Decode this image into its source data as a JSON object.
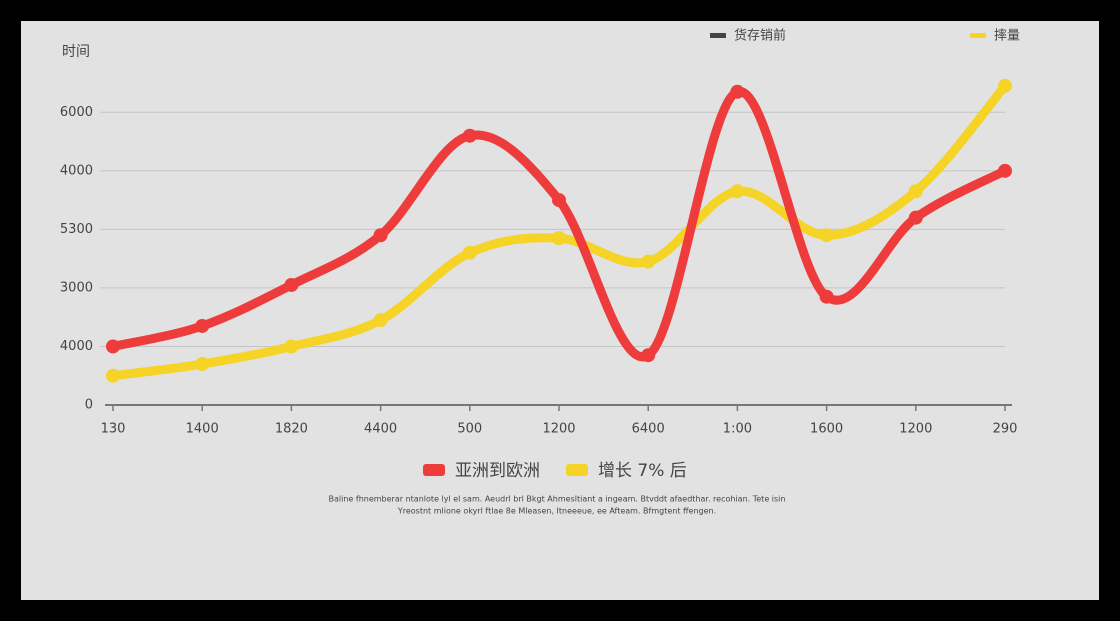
{
  "chart_data": {
    "type": "line",
    "y_axis_label": "时间",
    "top_legend": [
      {
        "name": "货存销前",
        "color": "#444444"
      },
      {
        "name": "摔量",
        "color": "#f5d327"
      }
    ],
    "categories": [
      "130",
      "1400",
      "1820",
      "4400",
      "500",
      "1200",
      "6400",
      "1:00",
      "1600",
      "1200",
      "290"
    ],
    "series": [
      {
        "name": "亚洲到欧洲",
        "color": "#ee3b3b",
        "values": [
          1.0,
          1.35,
          2.05,
          2.9,
          4.6,
          3.5,
          0.85,
          5.35,
          1.85,
          3.2,
          4.0
        ]
      },
      {
        "name": "增长 7% 后",
        "color": "#f5d327",
        "values": [
          0.5,
          0.7,
          1.0,
          1.45,
          2.6,
          2.85,
          2.45,
          3.65,
          2.9,
          3.65,
          5.45
        ]
      }
    ],
    "ylim": [
      0,
      5.5
    ],
    "yticks": [
      {
        "value": 0,
        "label": "0"
      },
      {
        "value": 1,
        "label": "4000"
      },
      {
        "value": 2,
        "label": "3000"
      },
      {
        "value": 3,
        "label": "5300"
      },
      {
        "value": 4,
        "label": "4000"
      },
      {
        "value": 5,
        "label": "6000"
      }
    ],
    "grid": true,
    "footnote": [
      "Baline fhnemberar ntanlote lyl el sam. Aeudrl brl Bkgt Ahmesltiant a ingeam. Btvddt afaedthar. recohian. Tete isin",
      "Yreostnt mlione okyrl ftlae 8e Mleasen, Itneeeue, ee Afteam. Bfmgtent ffengen."
    ]
  }
}
